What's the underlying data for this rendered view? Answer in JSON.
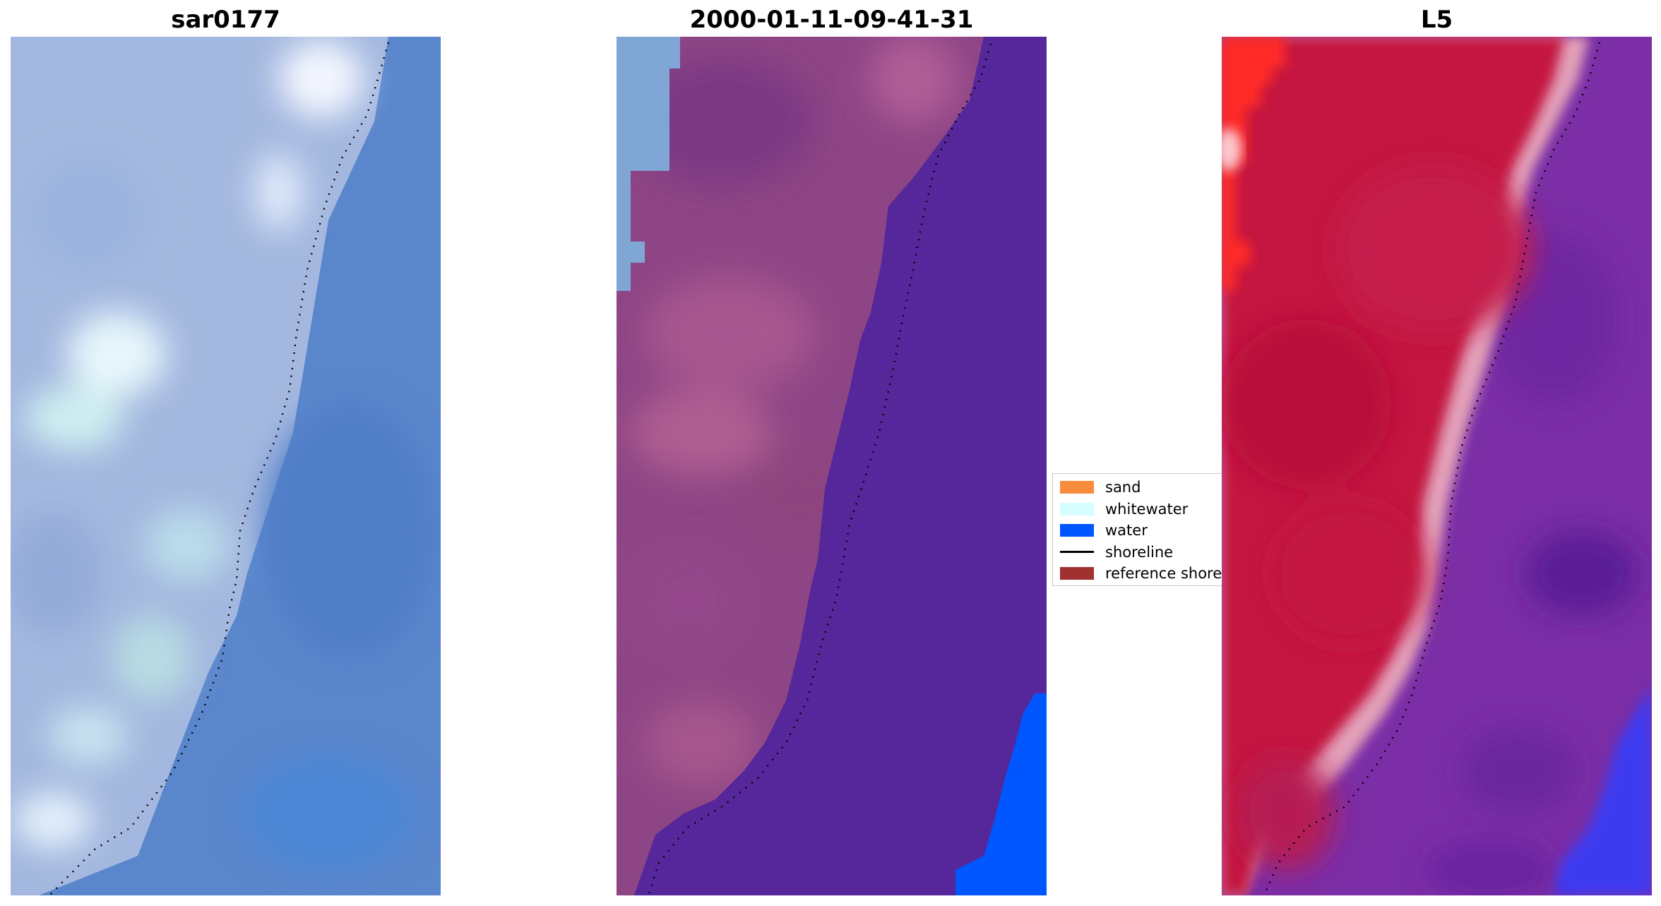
{
  "panels": [
    {
      "title": "sar0177"
    },
    {
      "title": "2000-01-11-09-41-31"
    },
    {
      "title": "L5"
    }
  ],
  "legend": {
    "items": [
      {
        "label": "sand",
        "color": "#f98c3c"
      },
      {
        "label": "whitewater",
        "color": "#d6fdff"
      },
      {
        "label": "water",
        "color": "#0057ff"
      },
      {
        "label": "shoreline",
        "color": "#000000"
      },
      {
        "label": "reference shoreline",
        "color": "#a13030"
      }
    ]
  },
  "colors": {
    "land_rgb": "#a9bee0",
    "water_rgb": "#5584cc",
    "class_land": "#934a8a",
    "class_water": "#55279a",
    "class_true_water": "#0057ff",
    "index_land": "#c31b46",
    "index_water": "#7b2da8",
    "index_deep_water": "#3b33f0",
    "index_bright": "#ff2020"
  }
}
